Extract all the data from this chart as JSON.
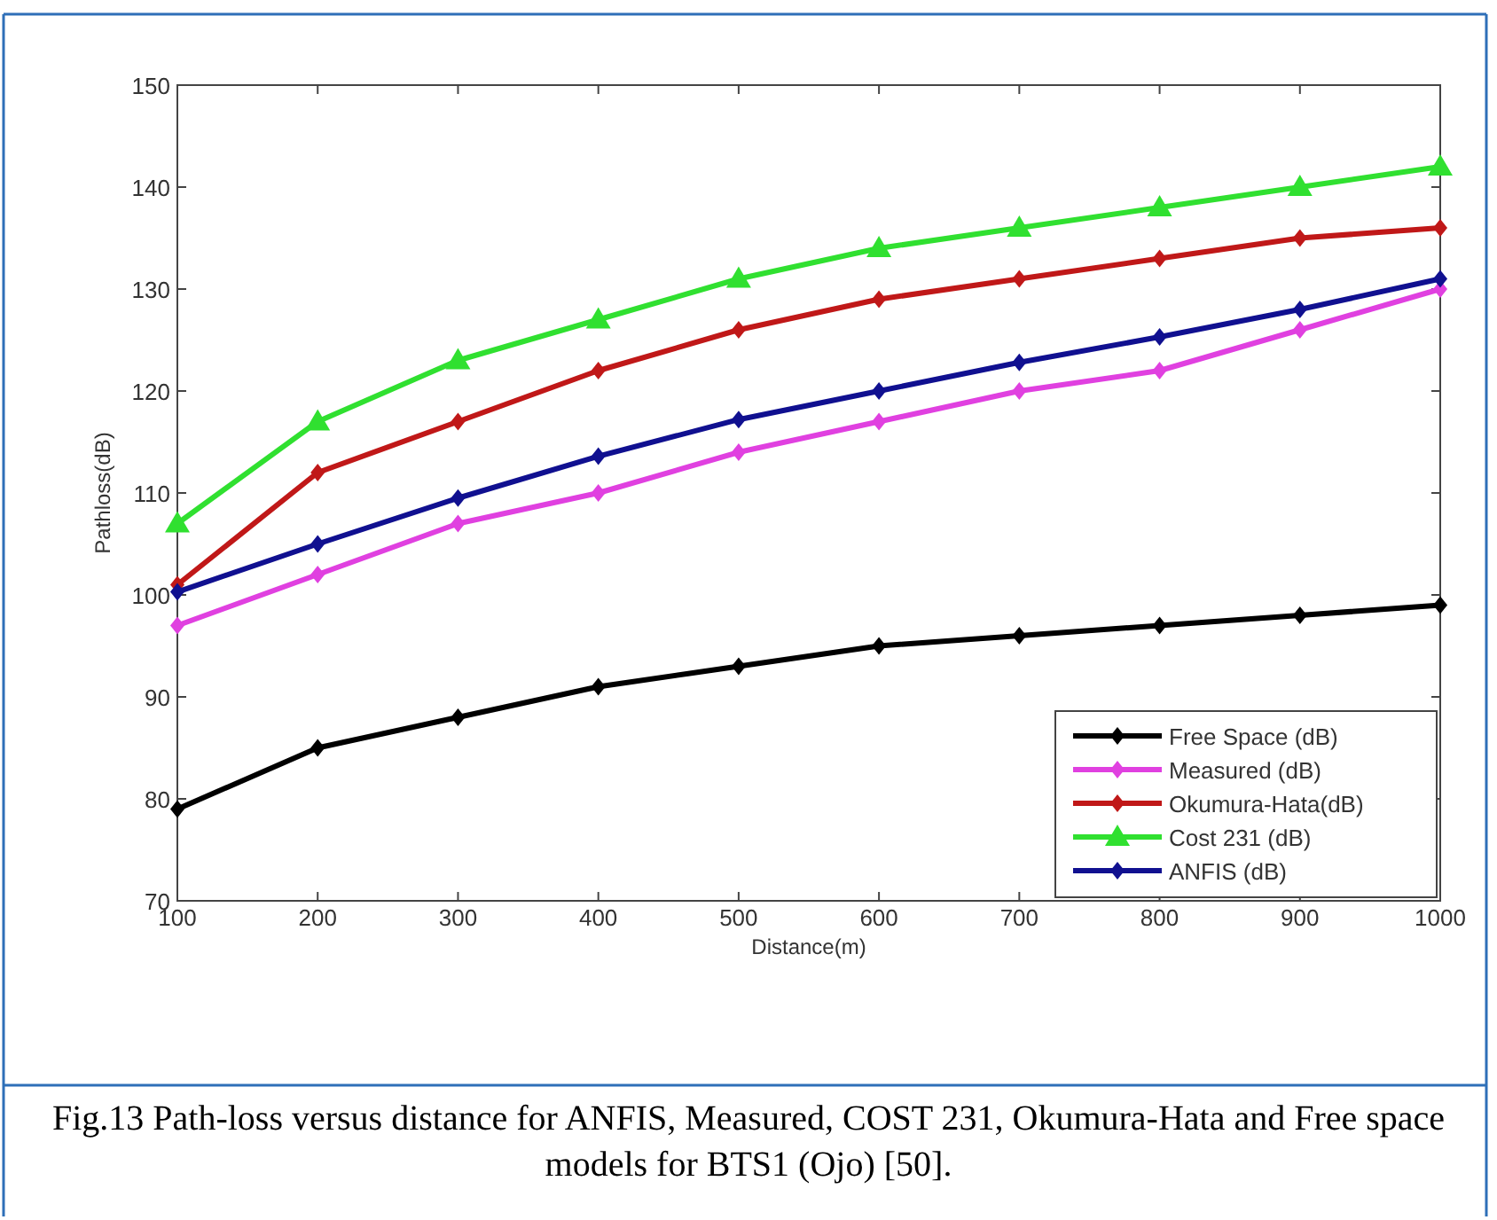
{
  "chart_data": {
    "type": "line",
    "xlabel": "Distance(m)",
    "ylabel": "Pathloss(dB)",
    "x": [
      100,
      200,
      300,
      400,
      500,
      600,
      700,
      800,
      900,
      1000
    ],
    "series": [
      {
        "name": "Free Space (dB)",
        "color": "#000000",
        "marker": "diamond",
        "values": [
          79,
          85,
          88,
          91,
          93,
          95,
          96,
          97,
          98,
          99
        ]
      },
      {
        "name": "Measured (dB)",
        "color": "#e040e0",
        "marker": "diamond",
        "values": [
          97,
          102,
          107,
          110,
          114,
          117,
          120,
          122,
          126,
          130
        ]
      },
      {
        "name": "Okumura-Hata(dB)",
        "color": "#c01818",
        "marker": "diamond",
        "values": [
          101,
          112,
          117,
          122,
          126,
          129,
          131,
          133,
          135,
          136
        ]
      },
      {
        "name": "Cost 231 (dB)",
        "color": "#30e030",
        "marker": "triangle",
        "values": [
          107,
          117,
          123,
          127,
          131,
          134,
          136,
          138,
          140,
          142
        ]
      },
      {
        "name": "ANFIS (dB)",
        "color": "#101090",
        "marker": "diamond",
        "values": [
          100.3,
          105,
          109.5,
          113.6,
          117.2,
          120,
          122.8,
          125.3,
          128,
          131
        ]
      }
    ],
    "xlim": [
      100,
      1000
    ],
    "xticks": [
      100,
      200,
      300,
      400,
      500,
      600,
      700,
      800,
      900,
      1000
    ],
    "ylim": [
      70,
      150
    ],
    "yticks": [
      70,
      80,
      90,
      100,
      110,
      120,
      130,
      140,
      150
    ],
    "grid": false,
    "legend": "bottom right",
    "line_style": "solid",
    "annotations": [
      "Fig.13 Path-loss versus distance for ANFIS, Measured, COST 231, Okumura-Hata and Free space models for BTS1 (Ojo) [50]."
    ]
  }
}
